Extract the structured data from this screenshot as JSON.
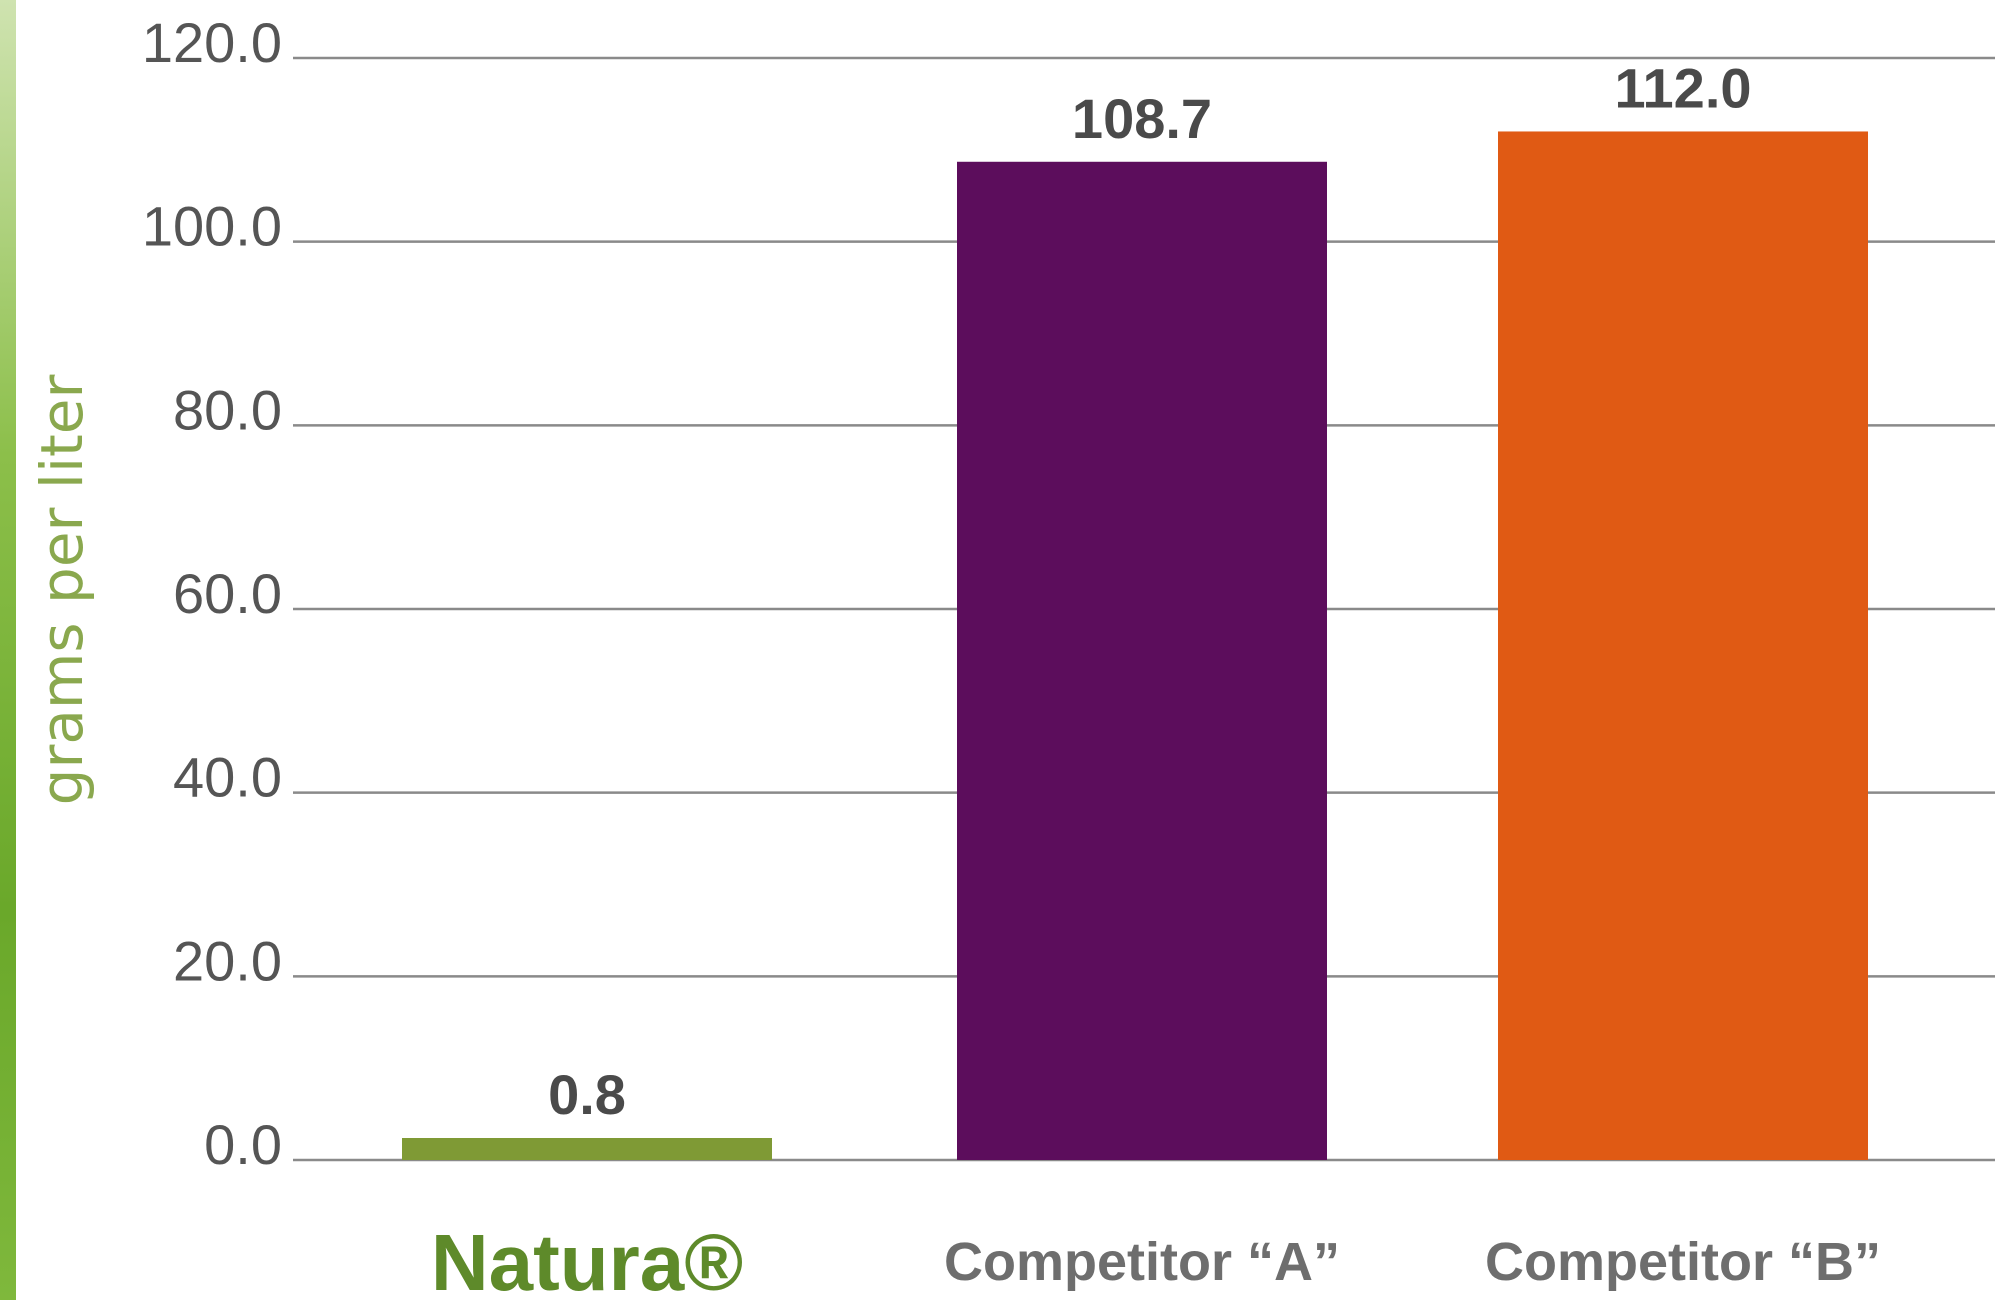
{
  "chart_data": {
    "type": "bar",
    "categories": [
      "Natura®",
      "Competitor “A”",
      "Competitor “B”"
    ],
    "values": [
      0.8,
      108.7,
      112.0
    ],
    "value_labels": [
      "0.8",
      "108.7",
      "112.0"
    ],
    "ylabel": "grams per liter",
    "ylim": [
      0,
      120
    ],
    "yticks": [
      "0.0",
      "20.0",
      "40.0",
      "60.0",
      "80.0",
      "100.0",
      "120.0"
    ],
    "grid": true,
    "colors": [
      "#7f9a35",
      "#5c0d5c",
      "#e05a14"
    ]
  }
}
